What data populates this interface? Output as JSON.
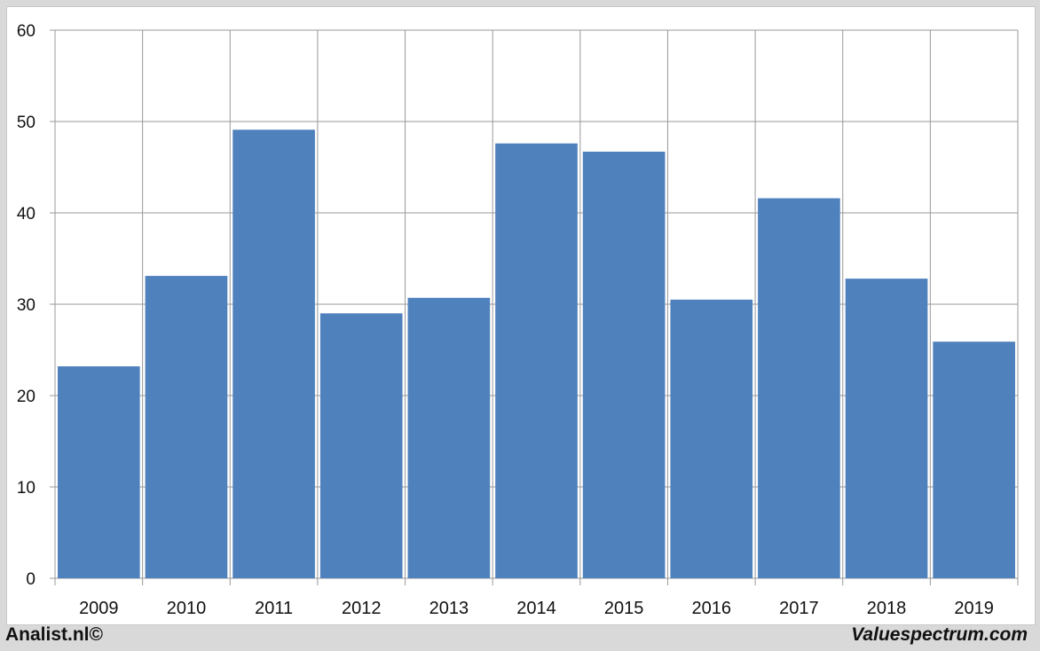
{
  "chart_data": {
    "type": "bar",
    "categories": [
      "2009",
      "2010",
      "2011",
      "2012",
      "2013",
      "2014",
      "2015",
      "2016",
      "2017",
      "2018",
      "2019"
    ],
    "values": [
      23.2,
      33.1,
      49.1,
      29.0,
      30.7,
      47.6,
      46.7,
      30.5,
      41.6,
      32.8,
      25.9
    ],
    "ylim": [
      0,
      60
    ],
    "yticks": [
      0,
      10,
      20,
      30,
      40,
      50,
      60
    ],
    "grid": true,
    "bar_color": "#4f81bd"
  },
  "footer": {
    "left": "Analist.nl©",
    "right": "Valuespectrum.com"
  }
}
